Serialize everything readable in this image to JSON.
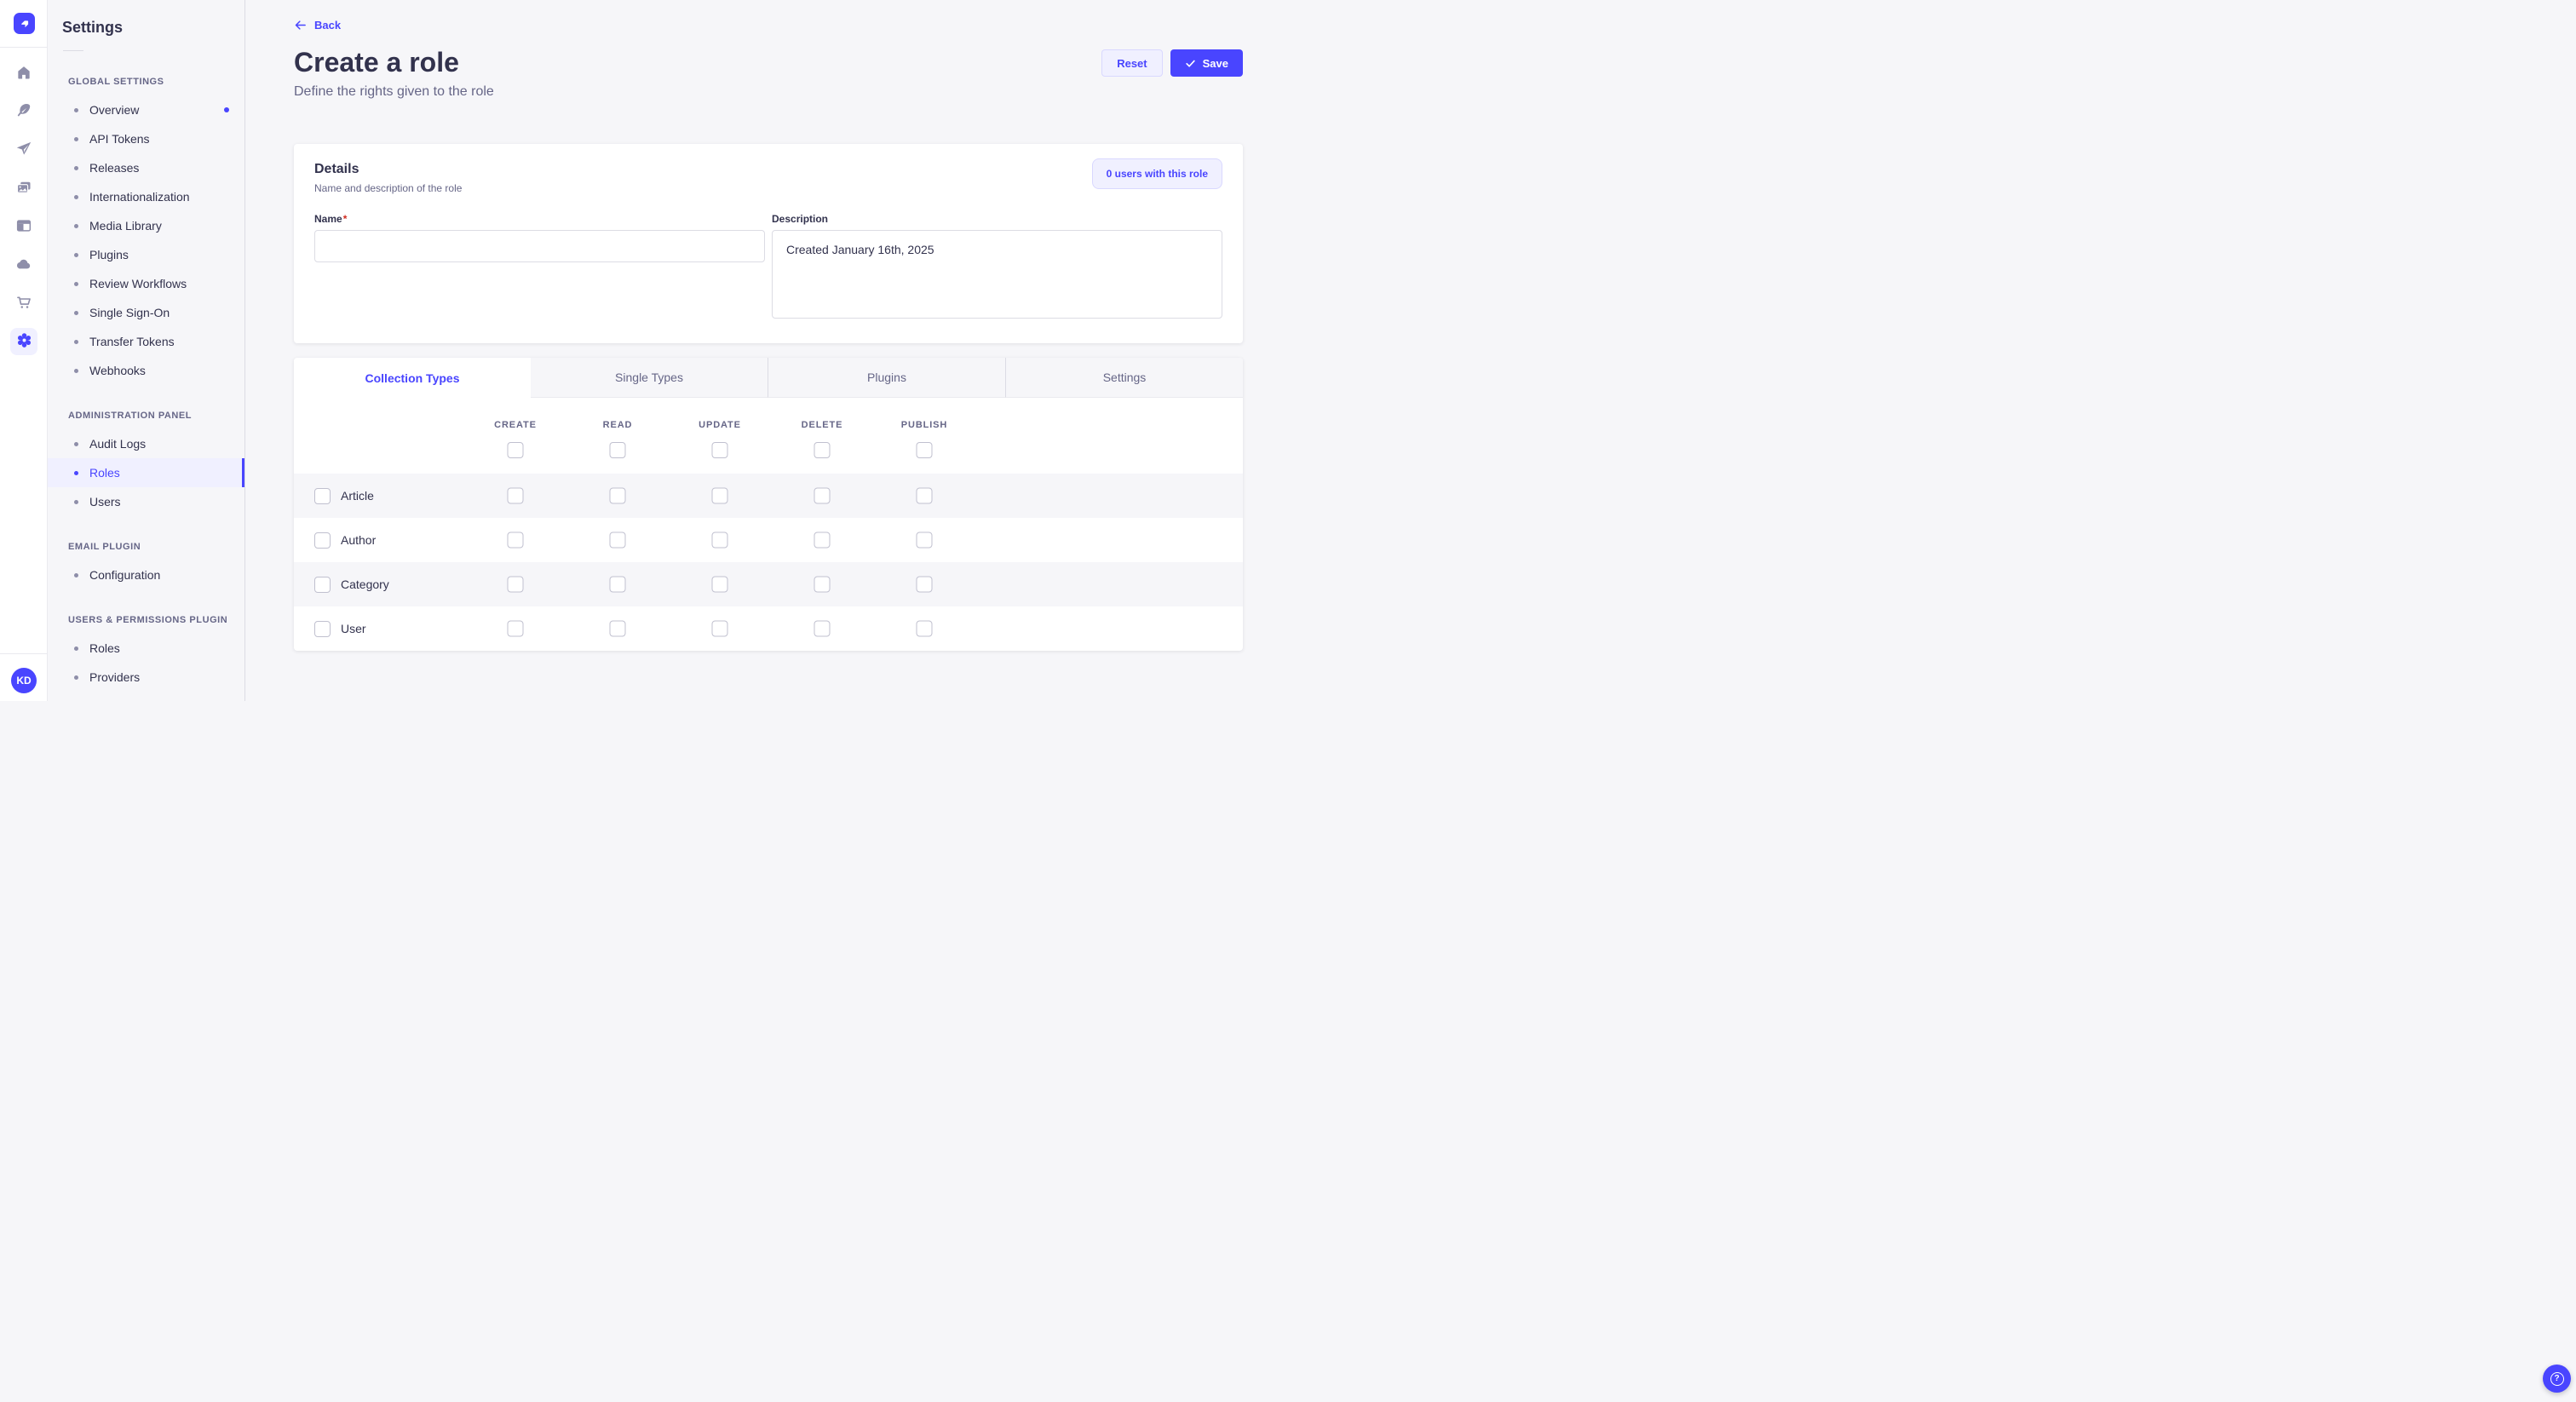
{
  "colors": {
    "primary": "#4945FF",
    "primary_light_bg": "#F0F0FF",
    "primary_border": "#D9D8FF",
    "page_bg": "#F6F6F9",
    "text_dark": "#32324D",
    "text_muted": "#666687",
    "border_neutral": "#DCDCE4",
    "checkbox_border": "#C0C0CF",
    "required_red": "#D02B20"
  },
  "rail": {
    "logo_icon": "strapi-logo",
    "items": [
      {
        "icon": "home",
        "active": false
      },
      {
        "icon": "pen",
        "active": false
      },
      {
        "icon": "paper-plane",
        "active": false
      },
      {
        "icon": "media",
        "active": false
      },
      {
        "icon": "layout",
        "active": false
      },
      {
        "icon": "cloud",
        "active": false
      },
      {
        "icon": "cart",
        "active": false
      },
      {
        "icon": "gear",
        "active": true
      }
    ],
    "avatar_initials": "KD"
  },
  "sidebar": {
    "title": "Settings",
    "sections": [
      {
        "label": "GLOBAL SETTINGS",
        "items": [
          {
            "label": "Overview",
            "active": false,
            "notification": true
          },
          {
            "label": "API Tokens",
            "active": false
          },
          {
            "label": "Releases",
            "active": false
          },
          {
            "label": "Internationalization",
            "active": false
          },
          {
            "label": "Media Library",
            "active": false
          },
          {
            "label": "Plugins",
            "active": false
          },
          {
            "label": "Review Workflows",
            "active": false
          },
          {
            "label": "Single Sign-On",
            "active": false
          },
          {
            "label": "Transfer Tokens",
            "active": false
          },
          {
            "label": "Webhooks",
            "active": false
          }
        ]
      },
      {
        "label": "ADMINISTRATION PANEL",
        "items": [
          {
            "label": "Audit Logs",
            "active": false
          },
          {
            "label": "Roles",
            "active": true
          },
          {
            "label": "Users",
            "active": false
          }
        ]
      },
      {
        "label": "EMAIL PLUGIN",
        "items": [
          {
            "label": "Configuration",
            "active": false
          }
        ]
      },
      {
        "label": "USERS & PERMISSIONS PLUGIN",
        "items": [
          {
            "label": "Roles",
            "active": false
          },
          {
            "label": "Providers",
            "active": false
          }
        ]
      }
    ]
  },
  "header": {
    "back_label": "Back",
    "title": "Create a role",
    "subtitle": "Define the rights given to the role",
    "reset_label": "Reset",
    "save_label": "Save"
  },
  "details_card": {
    "title": "Details",
    "subtitle": "Name and description of the role",
    "users_button_label": "0 users with this role",
    "fields": {
      "name": {
        "label": "Name",
        "required_mark": "*",
        "value": "",
        "placeholder": ""
      },
      "description": {
        "label": "Description",
        "value": "Created January 16th, 2025"
      }
    }
  },
  "tabs": [
    {
      "label": "Collection Types",
      "active": true
    },
    {
      "label": "Single Types",
      "active": false
    },
    {
      "label": "Plugins",
      "active": false
    },
    {
      "label": "Settings",
      "active": false
    }
  ],
  "permissions_table": {
    "columns": [
      "CREATE",
      "READ",
      "UPDATE",
      "DELETE",
      "PUBLISH"
    ],
    "select_all_checked": [
      false,
      false,
      false,
      false,
      false
    ],
    "rows": [
      {
        "label": "Article",
        "row_selected": false,
        "checked": [
          false,
          false,
          false,
          false,
          false
        ]
      },
      {
        "label": "Author",
        "row_selected": false,
        "checked": [
          false,
          false,
          false,
          false,
          false
        ]
      },
      {
        "label": "Category",
        "row_selected": false,
        "checked": [
          false,
          false,
          false,
          false,
          false
        ]
      },
      {
        "label": "User",
        "row_selected": false,
        "checked": [
          false,
          false,
          false,
          false,
          false
        ]
      }
    ]
  },
  "help": {
    "icon_glyph": "?"
  }
}
